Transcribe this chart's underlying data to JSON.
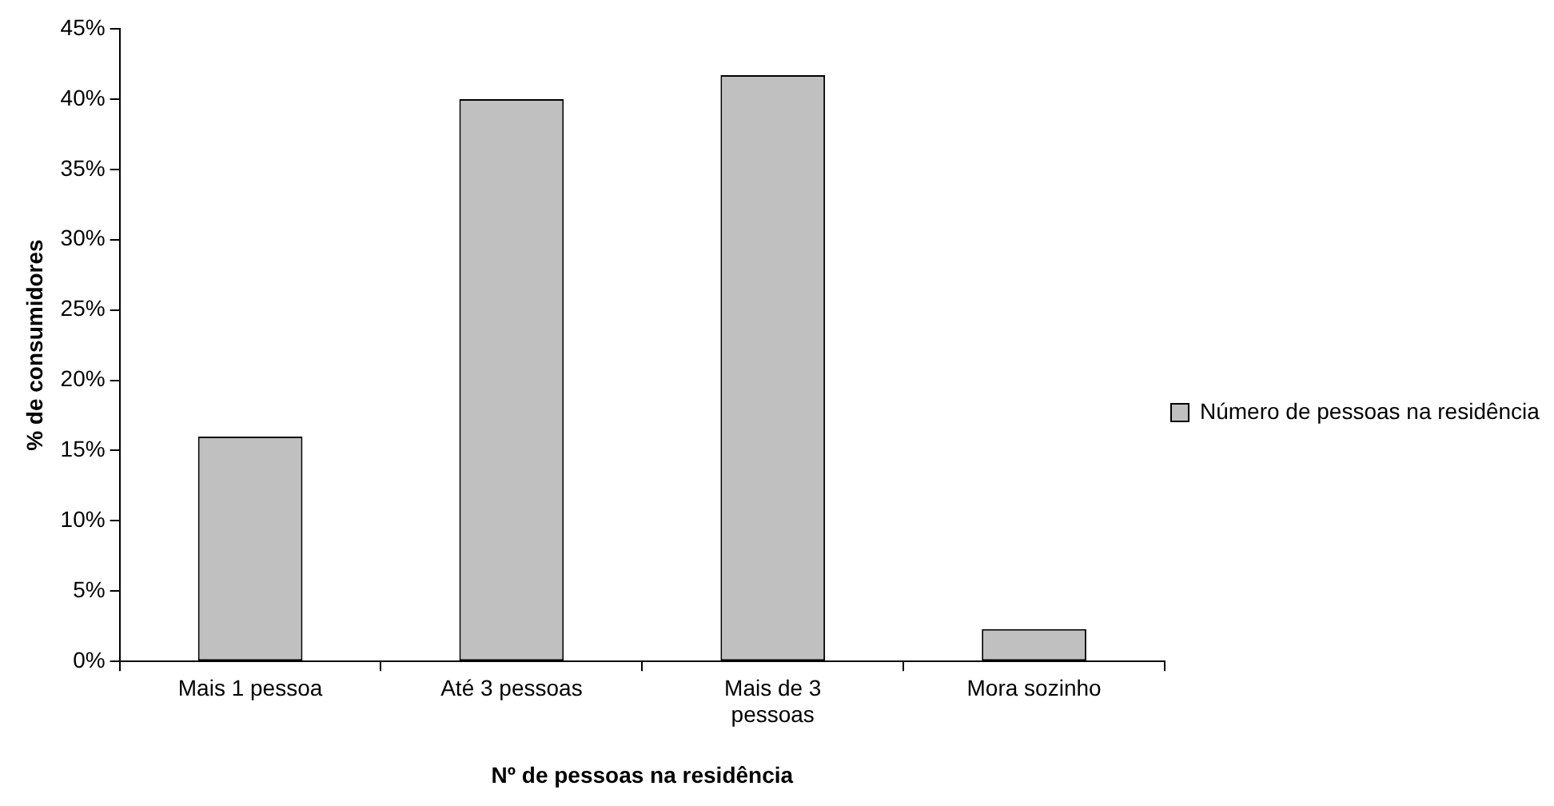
{
  "chart_data": {
    "type": "bar",
    "xlabel": "Nº de pessoas na residência",
    "ylabel": "% de consumidores",
    "categories": [
      "Mais 1 pessoa",
      "Até 3 pessoas",
      "Mais de 3 pessoas",
      "Mora sozinho"
    ],
    "series": [
      {
        "name": "Número de pessoas na residência",
        "color": "#c0c0c0",
        "values": [
          16,
          40,
          41.7,
          2.3
        ]
      }
    ],
    "ylim": [
      0,
      45
    ],
    "yticks": [
      {
        "value": 0,
        "label": "0%"
      },
      {
        "value": 5,
        "label": "5%"
      },
      {
        "value": 10,
        "label": "10%"
      },
      {
        "value": 15,
        "label": "15%"
      },
      {
        "value": 20,
        "label": "20%"
      },
      {
        "value": 25,
        "label": "25%"
      },
      {
        "value": 30,
        "label": "30%"
      },
      {
        "value": 35,
        "label": "35%"
      },
      {
        "value": 40,
        "label": "40%"
      },
      {
        "value": 45,
        "label": "45%"
      }
    ],
    "grid": false,
    "legend": "right"
  }
}
